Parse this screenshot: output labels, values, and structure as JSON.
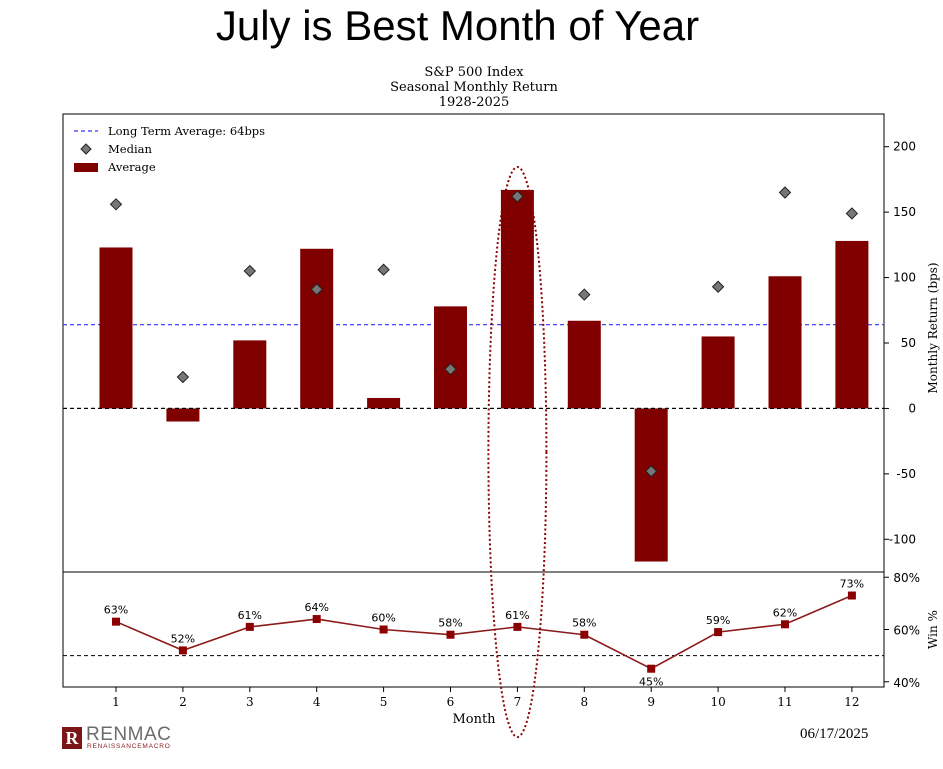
{
  "slide": {
    "title": "July is Best Month of Year",
    "date": "06/17/2025",
    "logo": {
      "name": "RENMAC",
      "subtitle": "RENAISSANCEMACRO",
      "mark": "R"
    }
  },
  "chart_data": [
    {
      "type": "bar",
      "title": [
        "S&P 500 Index",
        "Seasonal Monthly Return",
        "1928-2025"
      ],
      "ylabel": "Monthly Return (bps)",
      "ylim": [
        -125,
        225
      ],
      "yticks": [
        -100,
        -50,
        0,
        50,
        100,
        150,
        200
      ],
      "categories": [
        "1",
        "2",
        "3",
        "4",
        "5",
        "6",
        "7",
        "8",
        "9",
        "10",
        "11",
        "12"
      ],
      "series": [
        {
          "name": "Average",
          "type": "bar",
          "color": "#800000",
          "values": [
            123,
            -10,
            52,
            122,
            8,
            78,
            167,
            67,
            -117,
            55,
            101,
            128
          ]
        },
        {
          "name": "Median",
          "type": "scatter",
          "marker": "diamond",
          "color": "#777777",
          "values": [
            156,
            24,
            105,
            91,
            106,
            30,
            162,
            87,
            -48,
            93,
            165,
            149
          ]
        }
      ],
      "reference_lines": [
        {
          "name": "Long Term Average: 64bps",
          "value": 64,
          "style": "dashed",
          "color": "#3333ff"
        },
        {
          "value": 0,
          "style": "dashed",
          "color": "#000000"
        }
      ],
      "legend": {
        "placement": "top-left",
        "entries": [
          "Long Term Average: 64bps",
          "Median",
          "Average"
        ]
      },
      "highlight": {
        "category": "7",
        "shape": "dotted-ellipse",
        "color": "#8b0000"
      }
    },
    {
      "type": "line",
      "xlabel": "Month",
      "ylabel": "Win %",
      "ylim": [
        38,
        82
      ],
      "yticks": [
        40,
        60,
        80
      ],
      "ytick_labels": [
        "40%",
        "60%",
        "80%"
      ],
      "categories": [
        "1",
        "2",
        "3",
        "4",
        "5",
        "6",
        "7",
        "8",
        "9",
        "10",
        "11",
        "12"
      ],
      "series": [
        {
          "color": "#8b1a1a",
          "values": [
            63,
            52,
            61,
            64,
            60,
            58,
            61,
            58,
            45,
            59,
            62,
            73
          ],
          "labels": [
            "63%",
            "52%",
            "61%",
            "64%",
            "60%",
            "58%",
            "61%",
            "58%",
            "45%",
            "59%",
            "62%",
            "73%"
          ]
        }
      ],
      "reference_lines": [
        {
          "value": 50,
          "style": "dashed",
          "color": "#000000"
        }
      ]
    }
  ]
}
